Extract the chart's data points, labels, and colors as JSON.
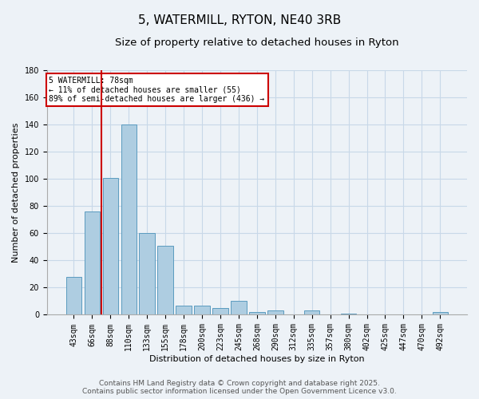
{
  "title": "5, WATERMILL, RYTON, NE40 3RB",
  "subtitle": "Size of property relative to detached houses in Ryton",
  "xlabel": "Distribution of detached houses by size in Ryton",
  "ylabel": "Number of detached properties",
  "bar_labels": [
    "43sqm",
    "66sqm",
    "88sqm",
    "110sqm",
    "133sqm",
    "155sqm",
    "178sqm",
    "200sqm",
    "223sqm",
    "245sqm",
    "268sqm",
    "290sqm",
    "312sqm",
    "335sqm",
    "357sqm",
    "380sqm",
    "402sqm",
    "425sqm",
    "447sqm",
    "470sqm",
    "492sqm"
  ],
  "bar_values": [
    28,
    76,
    101,
    140,
    60,
    51,
    7,
    7,
    5,
    10,
    2,
    3,
    0,
    3,
    0,
    1,
    0,
    0,
    0,
    0,
    2
  ],
  "bar_color": "#aecde1",
  "bar_edge_color": "#5b9bbf",
  "ylim": [
    0,
    180
  ],
  "yticks": [
    0,
    20,
    40,
    60,
    80,
    100,
    120,
    140,
    160,
    180
  ],
  "vline_x": 1.5,
  "vline_color": "#cc0000",
  "annotation_title": "5 WATERMILL: 78sqm",
  "annotation_line1": "← 11% of detached houses are smaller (55)",
  "annotation_line2": "89% of semi-detached houses are larger (436) →",
  "annotation_box_color": "#ffffff",
  "annotation_box_edge": "#cc0000",
  "footer_line1": "Contains HM Land Registry data © Crown copyright and database right 2025.",
  "footer_line2": "Contains public sector information licensed under the Open Government Licence v3.0.",
  "bg_color": "#edf2f7",
  "grid_color": "#c8d8e8",
  "title_fontsize": 11,
  "subtitle_fontsize": 9.5,
  "axis_label_fontsize": 8,
  "tick_fontsize": 7,
  "footer_fontsize": 6.5
}
